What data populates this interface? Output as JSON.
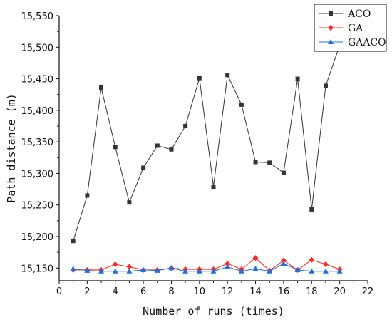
{
  "chart_data": {
    "type": "line",
    "title": "",
    "xlabel": "Number of runs (times)",
    "ylabel": "Path distance (m)",
    "xlim": [
      0,
      22
    ],
    "ylim": [
      15130,
      15550
    ],
    "xticks": [
      0,
      2,
      4,
      6,
      8,
      10,
      12,
      14,
      16,
      18,
      20,
      22
    ],
    "yticks": [
      15150,
      15200,
      15250,
      15300,
      15350,
      15400,
      15450,
      15500,
      15550
    ],
    "xtick_labels": [
      "0",
      "2",
      "4",
      "6",
      "8",
      "10",
      "12",
      "14",
      "16",
      "18",
      "20",
      "22"
    ],
    "ytick_labels": [
      "15,150",
      "15,200",
      "15,250",
      "15,300",
      "15,350",
      "15,400",
      "15,450",
      "15,500",
      "15,550"
    ],
    "grid": false,
    "legend_position": "top-right",
    "x": [
      1,
      2,
      3,
      4,
      5,
      6,
      7,
      8,
      9,
      10,
      11,
      12,
      13,
      14,
      15,
      16,
      17,
      18,
      19,
      20
    ],
    "series": [
      {
        "name": "ACO",
        "color": "#333333",
        "marker": "square",
        "values": [
          15193,
          15265,
          15436,
          15342,
          15254,
          15309,
          15344,
          15338,
          15375,
          15451,
          15279,
          15456,
          15409,
          15318,
          15317,
          15301,
          15450,
          15243,
          15439,
          15503
        ]
      },
      {
        "name": "GA",
        "color": "#ff2a2a",
        "marker": "diamond",
        "values": [
          15147,
          15147,
          15147,
          15156,
          15152,
          15147,
          15147,
          15150,
          15148,
          15148,
          15148,
          15157,
          15148,
          15166,
          15146,
          15162,
          15147,
          15163,
          15156,
          15148
        ]
      },
      {
        "name": "GAACO",
        "color": "#1f6fe0",
        "marker": "triangle",
        "values": [
          15149,
          15146,
          15145,
          15145,
          15145,
          15147,
          15146,
          15150,
          15145,
          15145,
          15145,
          15152,
          15145,
          15149,
          15145,
          15157,
          15147,
          15145,
          15145,
          15145
        ]
      }
    ]
  }
}
